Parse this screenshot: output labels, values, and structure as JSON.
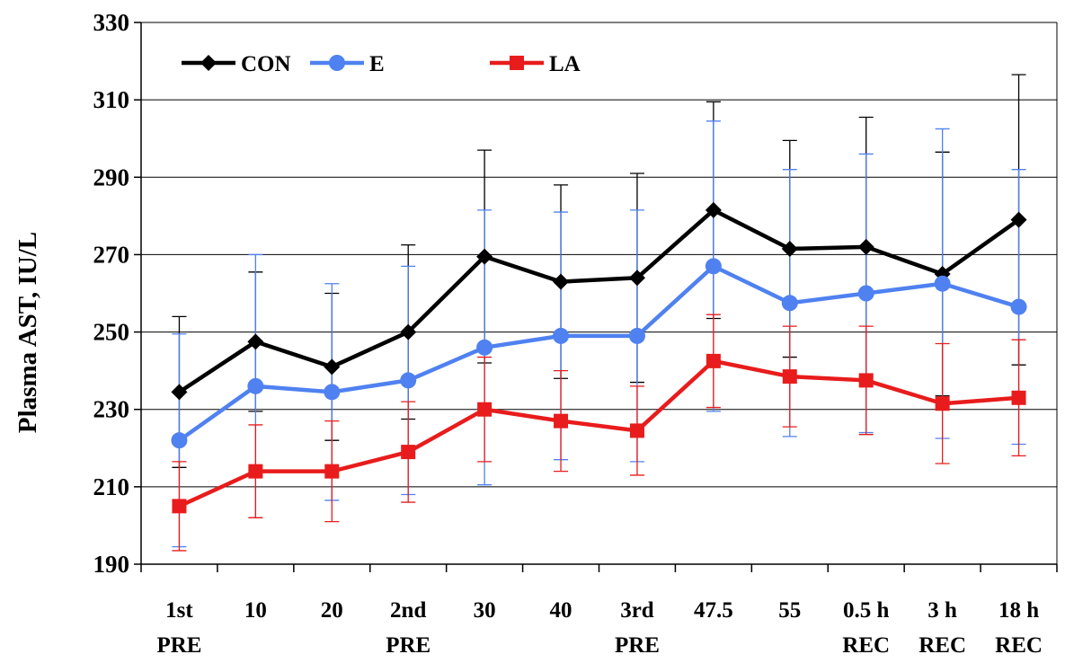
{
  "chart_data": {
    "type": "line",
    "ylabel": "Plasma AST, IU/L",
    "xlabel": "",
    "ylim": [
      190,
      330
    ],
    "yticks": [
      190,
      210,
      230,
      250,
      270,
      290,
      310,
      330
    ],
    "grid": true,
    "legend_position": "top-left",
    "categories": [
      [
        "1st",
        "PRE"
      ],
      [
        "10",
        ""
      ],
      [
        "20",
        ""
      ],
      [
        "2nd",
        "PRE"
      ],
      [
        "30",
        ""
      ],
      [
        "40",
        ""
      ],
      [
        "3rd",
        "PRE"
      ],
      [
        "47.5",
        ""
      ],
      [
        "55",
        ""
      ],
      [
        "0.5 h",
        "REC"
      ],
      [
        "3 h",
        "REC"
      ],
      [
        "18 h",
        "REC"
      ]
    ],
    "series": [
      {
        "name": "CON",
        "color": "#000000",
        "marker": "diamond",
        "values": [
          234.5,
          247.5,
          241,
          250,
          269.5,
          263,
          264,
          281.5,
          271.5,
          272,
          265,
          279
        ],
        "errors": [
          19.5,
          18,
          19,
          22.5,
          27.5,
          25,
          27,
          28,
          28,
          33.5,
          31.5,
          37.5
        ]
      },
      {
        "name": "E",
        "color": "#4f81f0",
        "marker": "circle",
        "values": [
          222,
          236,
          234.5,
          237.5,
          246,
          249,
          249,
          267,
          257.5,
          260,
          262.5,
          256.5
        ],
        "errors": [
          27.5,
          34,
          28,
          29.5,
          35.5,
          32,
          32.5,
          37.5,
          34.5,
          36,
          40,
          35.5
        ]
      },
      {
        "name": "LA",
        "color": "#e81c1c",
        "marker": "square",
        "values": [
          205,
          214,
          214,
          219,
          230,
          227,
          224.5,
          242.5,
          238.5,
          237.5,
          231.5,
          233
        ],
        "errors": [
          11.5,
          12,
          13,
          13,
          13.5,
          13,
          11.5,
          12,
          13,
          14,
          15.5,
          15
        ]
      }
    ]
  }
}
